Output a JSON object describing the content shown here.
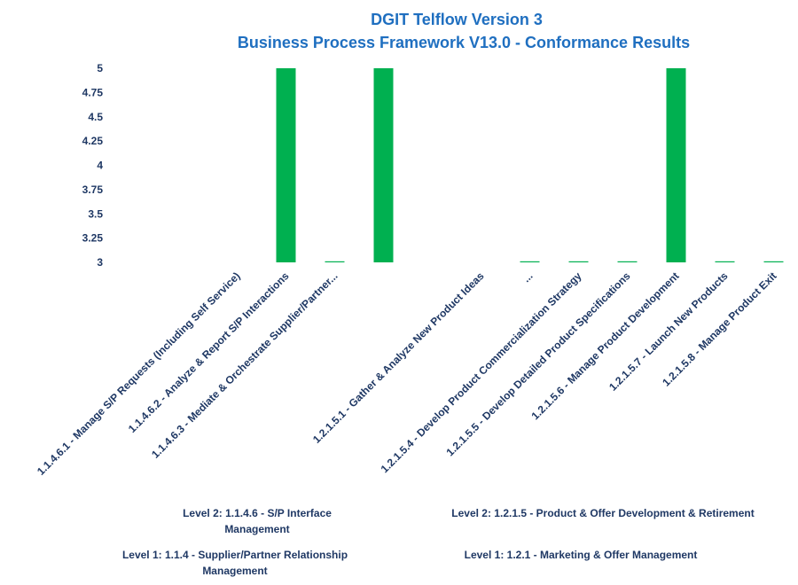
{
  "chart_data": {
    "type": "bar",
    "title": [
      "DGIT Telflow Version 3",
      "Business Process Framework V13.0 - Conformance Results"
    ],
    "categories": [
      "",
      "",
      "1.1.4.6.1 - Manage S/P Requests (Including Self Service)",
      "1.1.4.6.2 - Analyze & Report S/P Interactions",
      "1.1.4.6.3 - Mediate & Orchestrate Supplier/Partner...",
      "",
      "",
      "1.2.1.5.1 - Gather & Analyze New Product Ideas",
      "...",
      "1.2.1.5.4 - Develop Product Commercialization Strategy",
      "1.2.1.5.5 - Develop Detailed Product Specifications",
      "1.2.1.5.6 - Manage Product Development",
      "1.2.1.5.7 - Launch New Products",
      "1.2.1.5.8 - Manage Product Exit"
    ],
    "values": [
      null,
      null,
      null,
      5,
      3,
      5,
      null,
      null,
      3,
      3,
      3,
      5,
      3,
      3
    ],
    "yticks": [
      "5",
      "4.75",
      "4.5",
      "4.25",
      "4",
      "3.75",
      "3.5",
      "3.25",
      "3"
    ],
    "ylim": [
      3,
      5
    ],
    "bar_color": "#00b050",
    "groups": {
      "level2": [
        "Level 2: 1.1.4.6 - S/P Interface Management",
        "Level 2: 1.2.1.5 - Product & Offer Development & Retirement"
      ],
      "level1": [
        "Level 1: 1.1.4 - Supplier/Partner Relationship Management",
        "Level 1: 1.2.1 - Marketing & Offer Management"
      ]
    }
  }
}
